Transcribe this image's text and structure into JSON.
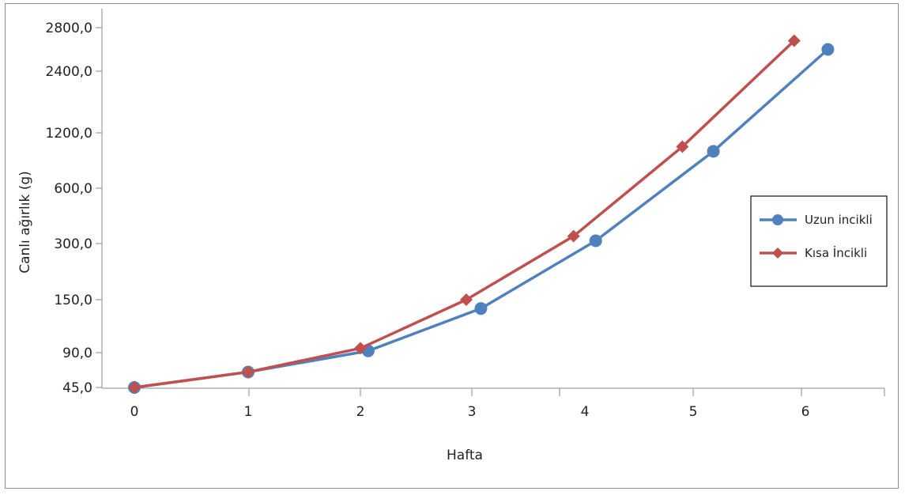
{
  "chart_data": {
    "type": "line",
    "xlabel": "Hafta",
    "ylabel": "Canlı ağırlık (g)",
    "x_ticks": [
      "0",
      "1",
      "2",
      "3",
      "4",
      "5",
      "6"
    ],
    "y_ticks": [
      "45,0",
      "90,0",
      "150,0",
      "300,0",
      "600,0",
      "1200,0",
      "2400,0",
      "2800,0"
    ],
    "xlim": [
      -0.1,
      6.7
    ],
    "grid": false,
    "legend_position": "right",
    "series": [
      {
        "name": "Uzun incikli",
        "color": "#4f81bd",
        "marker": "circle",
        "x": [
          0,
          1,
          2.07,
          3.08,
          4.1,
          5.18,
          6.2
        ],
        "y": [
          45,
          65,
          92,
          140,
          315,
          1000,
          2600
        ]
      },
      {
        "name": "Kısa İncikli",
        "color": "#c0504d",
        "marker": "diamond",
        "x": [
          0,
          1,
          2,
          2.95,
          3.9,
          4.9,
          5.9
        ],
        "y": [
          45,
          65,
          95,
          150,
          340,
          1050,
          2680
        ]
      }
    ]
  }
}
